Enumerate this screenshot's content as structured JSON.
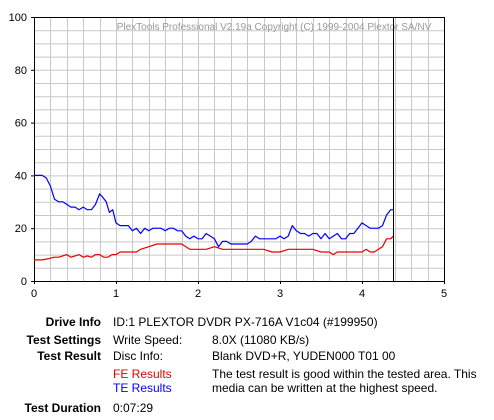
{
  "chart_data": {
    "type": "line",
    "watermark": "PlexTools Professional V2.19a Copyright (C) 1999-2004 Plextor SA/NV",
    "xlim": [
      0,
      5
    ],
    "ylim": [
      0,
      100
    ],
    "x_ticks": [
      "0",
      "1",
      "2",
      "3",
      "4",
      "5"
    ],
    "y_ticks": [
      "0",
      "20",
      "40",
      "60",
      "80",
      "100"
    ],
    "grid": true,
    "end_marker_x": 4.38,
    "series": [
      {
        "name": "FE Results",
        "color": "#e60000",
        "points": [
          [
            0,
            8
          ],
          [
            0.1,
            8
          ],
          [
            0.18,
            8.5
          ],
          [
            0.25,
            9
          ],
          [
            0.3,
            9
          ],
          [
            0.35,
            9.5
          ],
          [
            0.4,
            10
          ],
          [
            0.45,
            9
          ],
          [
            0.5,
            9.5
          ],
          [
            0.55,
            10
          ],
          [
            0.6,
            9
          ],
          [
            0.65,
            9.5
          ],
          [
            0.7,
            9
          ],
          [
            0.75,
            10
          ],
          [
            0.8,
            10
          ],
          [
            0.85,
            9
          ],
          [
            0.9,
            9
          ],
          [
            0.95,
            10
          ],
          [
            1.0,
            10
          ],
          [
            1.05,
            11
          ],
          [
            1.15,
            11
          ],
          [
            1.25,
            11
          ],
          [
            1.3,
            12
          ],
          [
            1.4,
            13
          ],
          [
            1.5,
            14
          ],
          [
            1.6,
            14
          ],
          [
            1.7,
            14
          ],
          [
            1.8,
            14
          ],
          [
            1.9,
            12
          ],
          [
            2.0,
            12
          ],
          [
            2.1,
            12
          ],
          [
            2.2,
            13
          ],
          [
            2.3,
            12
          ],
          [
            2.4,
            12
          ],
          [
            2.5,
            12
          ],
          [
            2.6,
            12
          ],
          [
            2.7,
            12
          ],
          [
            2.8,
            12
          ],
          [
            2.9,
            11
          ],
          [
            3.0,
            11
          ],
          [
            3.1,
            12
          ],
          [
            3.2,
            12
          ],
          [
            3.3,
            12
          ],
          [
            3.4,
            12
          ],
          [
            3.5,
            11
          ],
          [
            3.6,
            11
          ],
          [
            3.65,
            10
          ],
          [
            3.7,
            11
          ],
          [
            3.8,
            11
          ],
          [
            3.9,
            11
          ],
          [
            4.0,
            11
          ],
          [
            4.05,
            12
          ],
          [
            4.1,
            11
          ],
          [
            4.15,
            11
          ],
          [
            4.2,
            12
          ],
          [
            4.25,
            13
          ],
          [
            4.3,
            16
          ],
          [
            4.35,
            16
          ],
          [
            4.38,
            17
          ]
        ]
      },
      {
        "name": "TE Results",
        "color": "#0000ff",
        "points": [
          [
            0,
            40
          ],
          [
            0.05,
            40
          ],
          [
            0.1,
            40
          ],
          [
            0.15,
            39
          ],
          [
            0.2,
            36
          ],
          [
            0.25,
            31
          ],
          [
            0.3,
            30
          ],
          [
            0.35,
            30
          ],
          [
            0.4,
            29
          ],
          [
            0.45,
            28
          ],
          [
            0.5,
            28
          ],
          [
            0.55,
            27
          ],
          [
            0.6,
            28
          ],
          [
            0.65,
            27
          ],
          [
            0.7,
            27
          ],
          [
            0.75,
            29
          ],
          [
            0.8,
            33
          ],
          [
            0.83,
            32
          ],
          [
            0.88,
            30
          ],
          [
            0.92,
            26
          ],
          [
            0.96,
            27
          ],
          [
            1.0,
            22
          ],
          [
            1.05,
            21
          ],
          [
            1.1,
            21
          ],
          [
            1.15,
            21
          ],
          [
            1.2,
            19
          ],
          [
            1.25,
            20
          ],
          [
            1.3,
            18
          ],
          [
            1.35,
            20
          ],
          [
            1.4,
            19
          ],
          [
            1.45,
            20
          ],
          [
            1.5,
            20
          ],
          [
            1.55,
            20
          ],
          [
            1.6,
            19
          ],
          [
            1.65,
            20
          ],
          [
            1.7,
            20
          ],
          [
            1.75,
            19
          ],
          [
            1.8,
            19
          ],
          [
            1.85,
            17
          ],
          [
            1.9,
            16
          ],
          [
            1.95,
            17
          ],
          [
            2.0,
            16
          ],
          [
            2.05,
            16
          ],
          [
            2.1,
            18
          ],
          [
            2.15,
            17
          ],
          [
            2.2,
            16
          ],
          [
            2.25,
            13
          ],
          [
            2.3,
            15
          ],
          [
            2.35,
            15
          ],
          [
            2.4,
            14
          ],
          [
            2.45,
            14
          ],
          [
            2.5,
            14
          ],
          [
            2.55,
            14
          ],
          [
            2.6,
            14
          ],
          [
            2.65,
            15
          ],
          [
            2.7,
            17
          ],
          [
            2.75,
            16
          ],
          [
            2.8,
            16
          ],
          [
            2.85,
            16
          ],
          [
            2.9,
            16
          ],
          [
            2.95,
            16
          ],
          [
            3.0,
            17
          ],
          [
            3.05,
            16
          ],
          [
            3.1,
            17
          ],
          [
            3.15,
            21
          ],
          [
            3.2,
            19
          ],
          [
            3.25,
            18
          ],
          [
            3.3,
            18
          ],
          [
            3.35,
            17
          ],
          [
            3.4,
            18
          ],
          [
            3.45,
            18
          ],
          [
            3.5,
            16
          ],
          [
            3.55,
            18
          ],
          [
            3.6,
            16
          ],
          [
            3.65,
            17
          ],
          [
            3.7,
            18
          ],
          [
            3.75,
            16
          ],
          [
            3.8,
            16
          ],
          [
            3.85,
            18
          ],
          [
            3.9,
            18
          ],
          [
            3.95,
            20
          ],
          [
            4.0,
            22
          ],
          [
            4.05,
            21
          ],
          [
            4.1,
            20
          ],
          [
            4.15,
            20
          ],
          [
            4.2,
            20
          ],
          [
            4.25,
            21
          ],
          [
            4.3,
            25
          ],
          [
            4.35,
            27
          ],
          [
            4.38,
            27
          ]
        ]
      }
    ]
  },
  "info": {
    "drive_info_label": "Drive Info",
    "drive_info_value": "ID:1 PLEXTOR DVDR PX-716A V1c04 (#199950)",
    "test_settings_label": "Test Settings",
    "write_speed_label": "Write Speed:",
    "write_speed_value": "8.0X (11080 KB/s)",
    "test_result_label": "Test Result",
    "disc_info_label": "Disc Info:",
    "disc_info_value": "Blank DVD+R, YUDEN000 T01 00",
    "fe_results_label": "FE Results",
    "te_results_label": "TE Results",
    "result_text_line1": "The test result is good within the tested area. This",
    "result_text_line2": "media can be written at the highest speed.",
    "test_duration_label": "Test Duration",
    "test_duration_value": "0:07:29"
  }
}
